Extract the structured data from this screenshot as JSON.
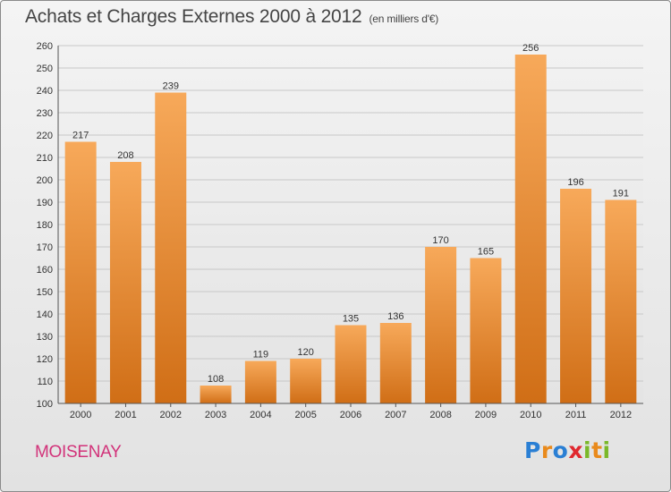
{
  "title": "Achats et Charges Externes 2000 à 2012",
  "subtitle": "(en milliers d'€)",
  "place": "MOISENAY",
  "logo": {
    "text": "Proxiti",
    "letters": [
      {
        "ch": "P",
        "color": "#2a7fd4"
      },
      {
        "ch": "r",
        "color": "#e98a1c"
      },
      {
        "ch": "o",
        "color": "#2a7fd4"
      },
      {
        "ch": "x",
        "color": "#e0282f"
      },
      {
        "ch": "i",
        "color": "#7ab829"
      },
      {
        "ch": "t",
        "color": "#e98a1c"
      },
      {
        "ch": "i",
        "color": "#7ab829"
      }
    ]
  },
  "colors": {
    "bar_light": "#f7a95a",
    "bar_dark": "#d06e16",
    "grid": "#c8c8c8",
    "title": "#444444",
    "place": "#d2337a"
  },
  "chart_data": {
    "type": "bar",
    "categories": [
      "2000",
      "2001",
      "2002",
      "2003",
      "2004",
      "2005",
      "2006",
      "2007",
      "2008",
      "2009",
      "2010",
      "2011",
      "2012"
    ],
    "values": [
      217,
      208,
      239,
      108,
      119,
      120,
      135,
      136,
      170,
      165,
      256,
      196,
      191
    ],
    "title": "Achats et Charges Externes 2000 à 2012",
    "subtitle": "(en milliers d'€)",
    "xlabel": "",
    "ylabel": "",
    "ylim": [
      100,
      260
    ],
    "yticks": [
      100,
      110,
      120,
      130,
      140,
      150,
      160,
      170,
      180,
      190,
      200,
      210,
      220,
      230,
      240,
      250,
      260
    ],
    "grid": true,
    "legend": "none"
  }
}
